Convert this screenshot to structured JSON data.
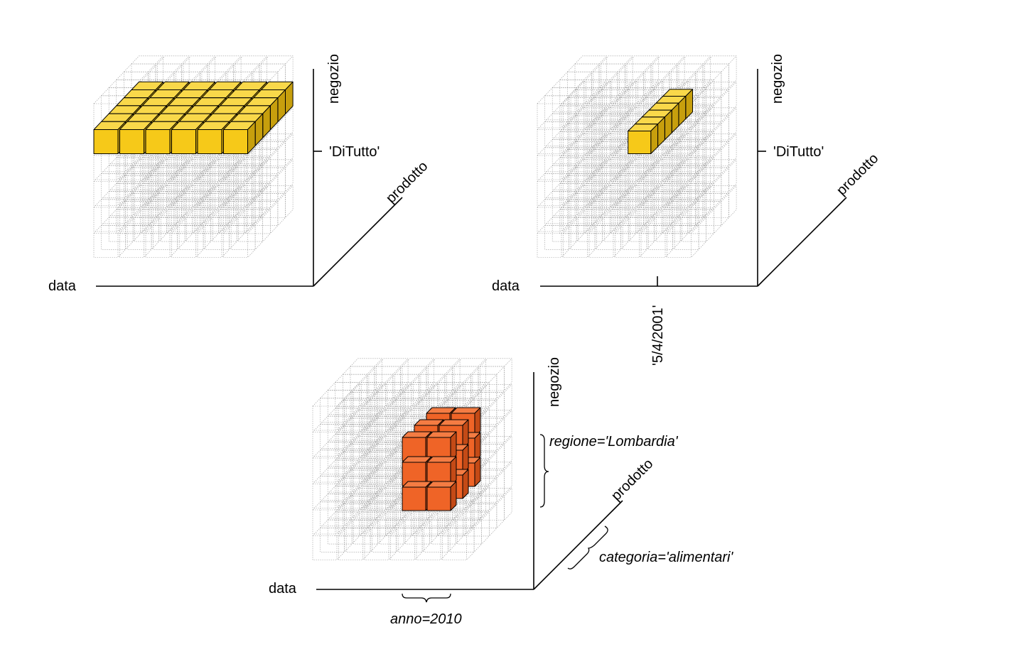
{
  "colors": {
    "wire": "#9a9a9a",
    "slice_face": "#f6c919",
    "slice_top": "#f9d84a",
    "slice_side": "#c79f0d",
    "subcube_face": "#ef6427",
    "subcube_top": "#f47c43",
    "subcube_side": "#c44a16",
    "edge": "#000000"
  },
  "panels": [
    {
      "id": "slice",
      "highlight": "horizontal-layer",
      "axes": {
        "x": "data",
        "y": "negozio",
        "z": "prodotto"
      },
      "markers": {
        "negozio_value": "'DiTutto'"
      }
    },
    {
      "id": "dice-row",
      "highlight": "single-row",
      "axes": {
        "x": "data",
        "y": "negozio",
        "z": "prodotto"
      },
      "markers": {
        "negozio_value": "'DiTutto'",
        "data_value": "'5/4/2001'"
      }
    },
    {
      "id": "subcube",
      "highlight": "sub-cube-2x3x3",
      "axes": {
        "x": "data",
        "y": "negozio",
        "z": "prodotto"
      },
      "markers": {
        "negozio_range": "regione='Lombardia'",
        "prodotto_range": "categoria='alimentari'",
        "data_range": "anno=2010"
      }
    }
  ]
}
